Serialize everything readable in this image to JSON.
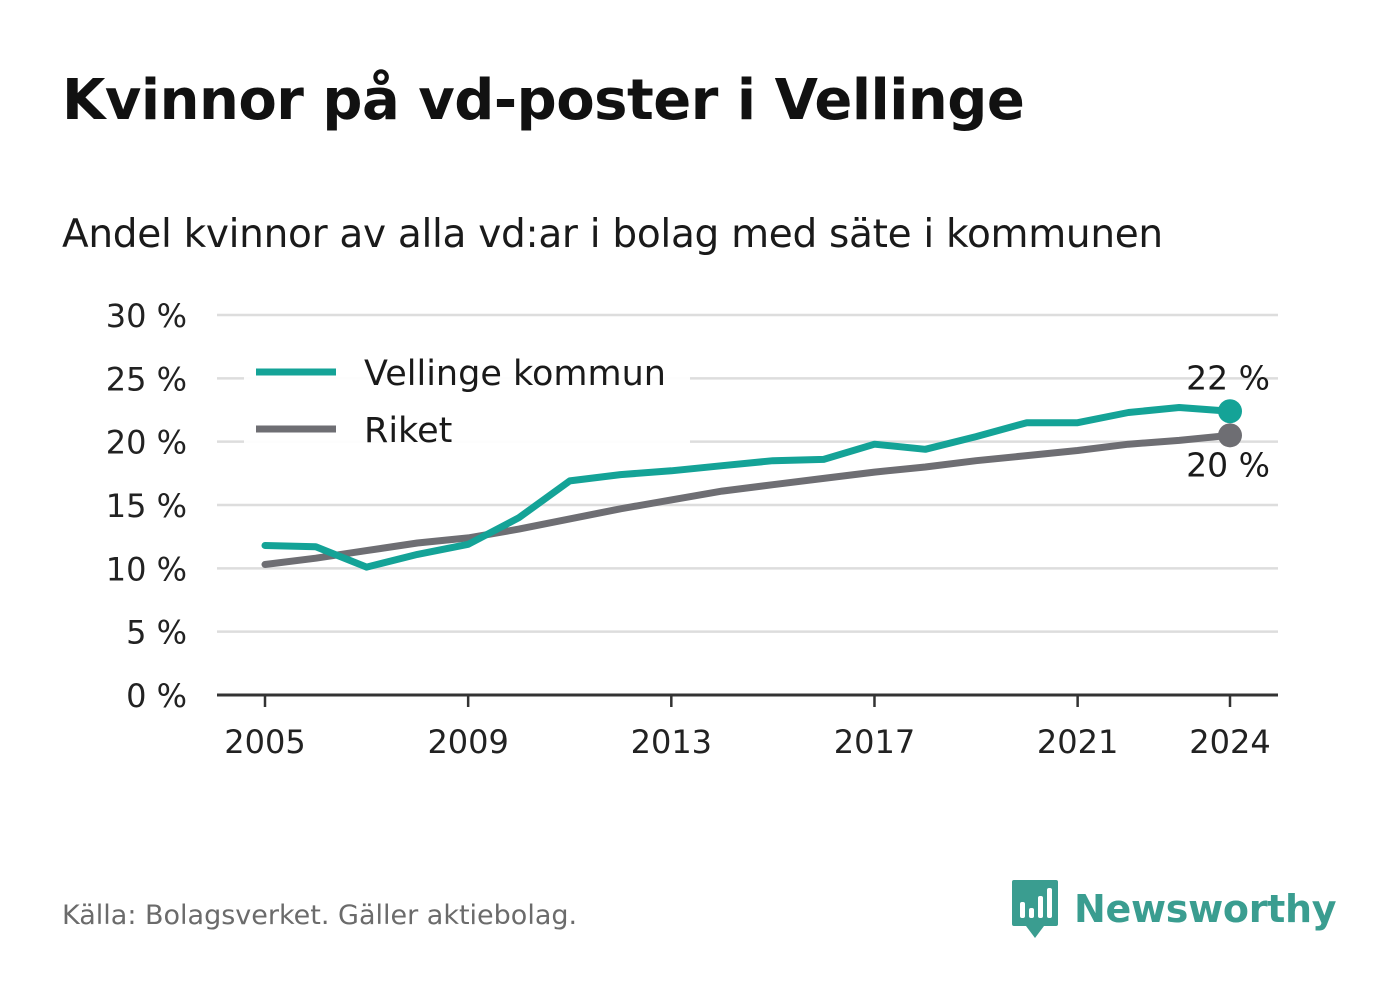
{
  "title": "Kvinnor på vd-poster i Vellinge",
  "subtitle": "Andel kvinnor av alla vd:ar i bolag med säte i kommunen",
  "source": "Källa: Bolagsverket. Gäller aktiebolag.",
  "brand": {
    "name": "Newsworthy",
    "icon": "newsworthy-logo-icon"
  },
  "colors": {
    "vellinge": "#14a397",
    "riket": "#6e6e73",
    "grid": "#dddddd",
    "axis": "#333333",
    "brand": "#3a9d90"
  },
  "chart_data": {
    "type": "line",
    "x": [
      2005,
      2006,
      2007,
      2008,
      2009,
      2010,
      2011,
      2012,
      2013,
      2014,
      2015,
      2016,
      2017,
      2018,
      2019,
      2020,
      2021,
      2022,
      2023,
      2024
    ],
    "series": [
      {
        "name": "Vellinge kommun",
        "color": "#14a397",
        "values": [
          11.8,
          11.7,
          10.1,
          11.1,
          11.9,
          14.0,
          16.9,
          17.4,
          17.7,
          18.1,
          18.5,
          18.6,
          19.8,
          19.4,
          20.4,
          21.5,
          21.5,
          22.3,
          22.7,
          22.4
        ]
      },
      {
        "name": "Riket",
        "color": "#6e6e73",
        "values": [
          10.3,
          10.8,
          11.4,
          12.0,
          12.4,
          13.1,
          13.9,
          14.7,
          15.4,
          16.1,
          16.6,
          17.1,
          17.6,
          18.0,
          18.5,
          18.9,
          19.3,
          19.8,
          20.1,
          20.5
        ]
      }
    ],
    "end_labels": [
      "22 %",
      "20 %"
    ],
    "x_ticks": [
      2005,
      2009,
      2013,
      2017,
      2021,
      2024
    ],
    "x_tick_labels": [
      "2005",
      "2009",
      "2013",
      "2017",
      "2021",
      "2024"
    ],
    "y_ticks": [
      0,
      5,
      10,
      15,
      20,
      25,
      30
    ],
    "y_tick_labels": [
      "0 %",
      "5 %",
      "10 %",
      "15 %",
      "20 %",
      "25 %",
      "30 %"
    ],
    "ylim": [
      0,
      30
    ],
    "xlim": [
      2005,
      2024
    ],
    "grid": true,
    "legend": "top-left",
    "xlabel": "",
    "ylabel": ""
  }
}
